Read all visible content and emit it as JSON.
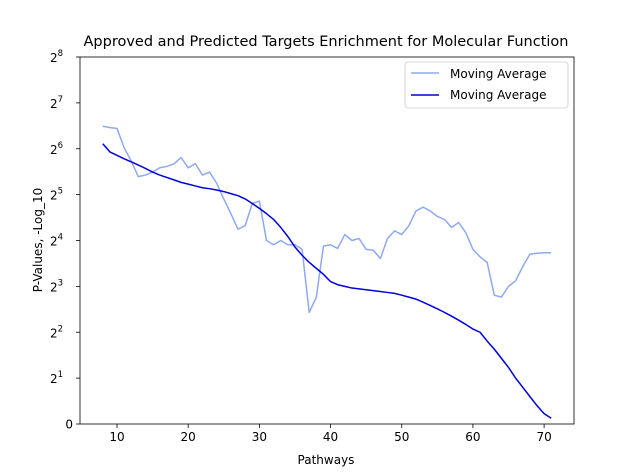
{
  "chart_data": {
    "type": "line",
    "title": "Approved and Predicted Targets Enrichment for Molecular Function",
    "xlabel": "Pathways",
    "ylabel": "P-Values, -Log_10",
    "xlim": [
      4.8,
      74.2
    ],
    "ylim_log2_exponent": [
      0,
      8
    ],
    "y_scale": "symlog base 2",
    "x_ticks": [
      10,
      20,
      30,
      40,
      50,
      60,
      70
    ],
    "x_tick_labels": [
      "10",
      "20",
      "30",
      "40",
      "50",
      "60",
      "70"
    ],
    "y_ticks": [
      0,
      2,
      4,
      8,
      16,
      32,
      64,
      128,
      256
    ],
    "y_tick_labels": [
      {
        "base": "0",
        "exp": ""
      },
      {
        "base": "2",
        "exp": "1"
      },
      {
        "base": "2",
        "exp": "2"
      },
      {
        "base": "2",
        "exp": "3"
      },
      {
        "base": "2",
        "exp": "4"
      },
      {
        "base": "2",
        "exp": "5"
      },
      {
        "base": "2",
        "exp": "6"
      },
      {
        "base": "2",
        "exp": "7"
      },
      {
        "base": "2",
        "exp": "8"
      }
    ],
    "legend_position": "upper right",
    "grid": false,
    "series": [
      {
        "name": "Moving Average",
        "color": "#8fa8f5",
        "x": [
          8,
          9,
          10,
          11,
          12,
          13,
          14,
          15,
          16,
          17,
          18,
          19,
          20,
          21,
          22,
          23,
          24,
          25,
          26,
          27,
          28,
          29,
          30,
          31,
          32,
          33,
          34,
          35,
          36,
          37,
          38,
          39,
          40,
          41,
          42,
          43,
          44,
          45,
          46,
          47,
          48,
          49,
          50,
          51,
          52,
          53,
          54,
          55,
          56,
          57,
          58,
          59,
          60,
          61,
          62,
          63,
          64,
          65,
          66,
          67,
          68,
          69,
          70,
          71
        ],
        "y": [
          90,
          88,
          87,
          65,
          53,
          42,
          43,
          45,
          48,
          49,
          51,
          56,
          48,
          51,
          43,
          45,
          38,
          30,
          24,
          19,
          20,
          28,
          29,
          16,
          15,
          16,
          15,
          15,
          14,
          5.4,
          6.8,
          14.7,
          15,
          14.2,
          17.5,
          16,
          16.5,
          14,
          13.8,
          12.2,
          16.5,
          18.5,
          17.5,
          20,
          25,
          26.5,
          25,
          23,
          22,
          19.5,
          21,
          18,
          14,
          12.5,
          11.5,
          7,
          6.8,
          8,
          8.7,
          10.8,
          13,
          13.2,
          13.3,
          13.3
        ],
        "values_note": ""
      },
      {
        "name": "Moving Average",
        "color": "#0000dd",
        "x": [
          8,
          9,
          10,
          11,
          12,
          13,
          14,
          15,
          16,
          17,
          18,
          19,
          20,
          21,
          22,
          23,
          24,
          25,
          26,
          27,
          28,
          29,
          30,
          31,
          32,
          33,
          34,
          35,
          36,
          37,
          38,
          39,
          40,
          41,
          42,
          43,
          44,
          45,
          46,
          47,
          48,
          49,
          50,
          51,
          52,
          53,
          54,
          55,
          56,
          57,
          58,
          59,
          60,
          61,
          62,
          63,
          64,
          65,
          66,
          67,
          68,
          69,
          70,
          71
        ],
        "y": [
          69,
          61,
          58,
          55,
          52.5,
          50,
          47.5,
          45,
          43,
          41.5,
          40,
          38.5,
          37.5,
          36.5,
          35.5,
          35,
          34.3,
          33.5,
          32.5,
          31.5,
          30,
          28,
          26,
          24,
          22,
          19.5,
          17,
          14.5,
          12.8,
          11.5,
          10.5,
          9.6,
          8.6,
          8.2,
          8,
          7.8,
          7.7,
          7.6,
          7.5,
          7.4,
          7.3,
          7.2,
          7,
          6.8,
          6.6,
          6.3,
          6,
          5.7,
          5.4,
          5.1,
          4.8,
          4.5,
          4.2,
          4,
          3.5,
          3.1,
          2.7,
          2.35,
          2,
          1.6,
          1.2,
          0.8,
          0.45,
          0.25
        ]
      }
    ]
  }
}
